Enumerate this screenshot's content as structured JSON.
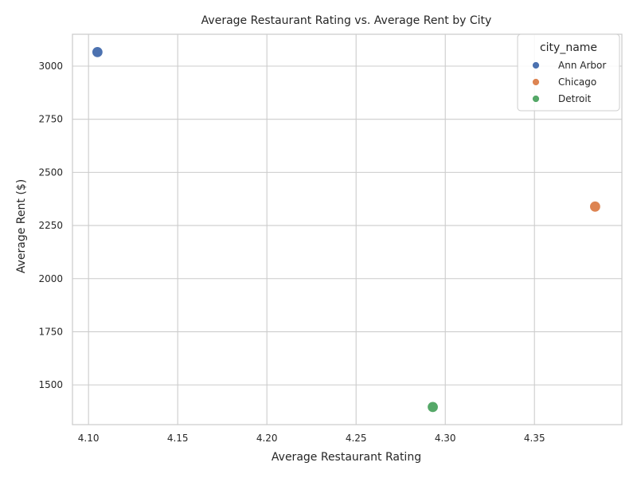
{
  "chart_data": {
    "type": "scatter",
    "title": "Average Restaurant Rating vs. Average Rent by City",
    "xlabel": "Average Restaurant Rating",
    "ylabel": "Average Rent ($)",
    "xlim": [
      4.091,
      4.399
    ],
    "ylim": [
      1313,
      3150
    ],
    "xticks": [
      4.1,
      4.15,
      4.2,
      4.25,
      4.3,
      4.35
    ],
    "xtick_labels": [
      "4.10",
      "4.15",
      "4.20",
      "4.25",
      "4.30",
      "4.35"
    ],
    "yticks": [
      1500,
      1750,
      2000,
      2250,
      2500,
      2750,
      3000
    ],
    "ytick_labels": [
      "1500",
      "1750",
      "2000",
      "2250",
      "2500",
      "2750",
      "3000"
    ],
    "grid": true,
    "legend": {
      "title": "city_name",
      "placement": "top-right"
    },
    "series": [
      {
        "name": "Ann Arbor",
        "color": "#4c72b0",
        "x": [
          4.105
        ],
        "y": [
          3066
        ]
      },
      {
        "name": "Chicago",
        "color": "#dd8452",
        "x": [
          4.384
        ],
        "y": [
          2339
        ]
      },
      {
        "name": "Detroit",
        "color": "#55a868",
        "x": [
          4.293
        ],
        "y": [
          1396
        ]
      }
    ]
  }
}
